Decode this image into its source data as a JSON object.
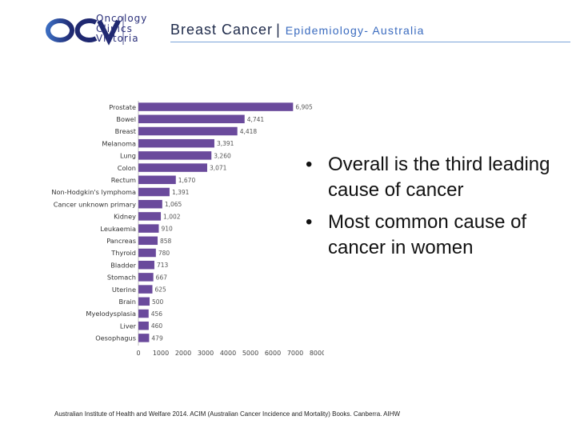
{
  "logo": {
    "mark_text": "OCV",
    "lines": [
      "Oncology",
      "Clinics",
      "Victoria"
    ],
    "color": "#2a2f7a",
    "accent": "#3a6bbf"
  },
  "header": {
    "title": "Breast Cancer",
    "separator": "|",
    "subtitle": "Epidemiology- Australia"
  },
  "bullets": [
    "Overall is the third leading cause of cancer",
    "Most common cause of cancer in women"
  ],
  "citation": "Australian Institute of Health and Welfare 2014. ACIM (Australian Cancer Incidence and Mortality) Books. Canberra. AIHW",
  "chart_data": {
    "type": "bar",
    "orientation": "horizontal",
    "bar_color": "#6a4a9c",
    "categories": [
      "Prostate",
      "Bowel",
      "Breast",
      "Melanoma",
      "Lung",
      "Colon",
      "Rectum",
      "Non-Hodgkin's lymphoma",
      "Cancer unknown primary",
      "Kidney",
      "Leukaemia",
      "Pancreas",
      "Thyroid",
      "Bladder",
      "Stomach",
      "Uterine",
      "Brain",
      "Myelodysplasia",
      "Liver",
      "Oesophagus"
    ],
    "values": [
      6905,
      4741,
      4418,
      3391,
      3260,
      3071,
      1670,
      1391,
      1065,
      1002,
      910,
      858,
      780,
      713,
      667,
      625,
      500,
      456,
      460,
      479
    ],
    "labels": [
      "6,905",
      "4,741",
      "4,418",
      "3,391",
      "3,260",
      "3,071",
      "1,670",
      "1,391",
      "1,065",
      "1,002",
      "910",
      "858",
      "780",
      "713",
      "667",
      "625",
      "500",
      "456",
      "460",
      "479"
    ],
    "xlim": [
      0,
      8000
    ],
    "xticks": [
      0,
      1000,
      2000,
      3000,
      4000,
      5000,
      6000,
      7000,
      8000
    ],
    "xtick_labels": [
      "0",
      "1000",
      "2000",
      "3000",
      "4000",
      "5000",
      "6000",
      "7000",
      "8000"
    ],
    "grid": false
  }
}
